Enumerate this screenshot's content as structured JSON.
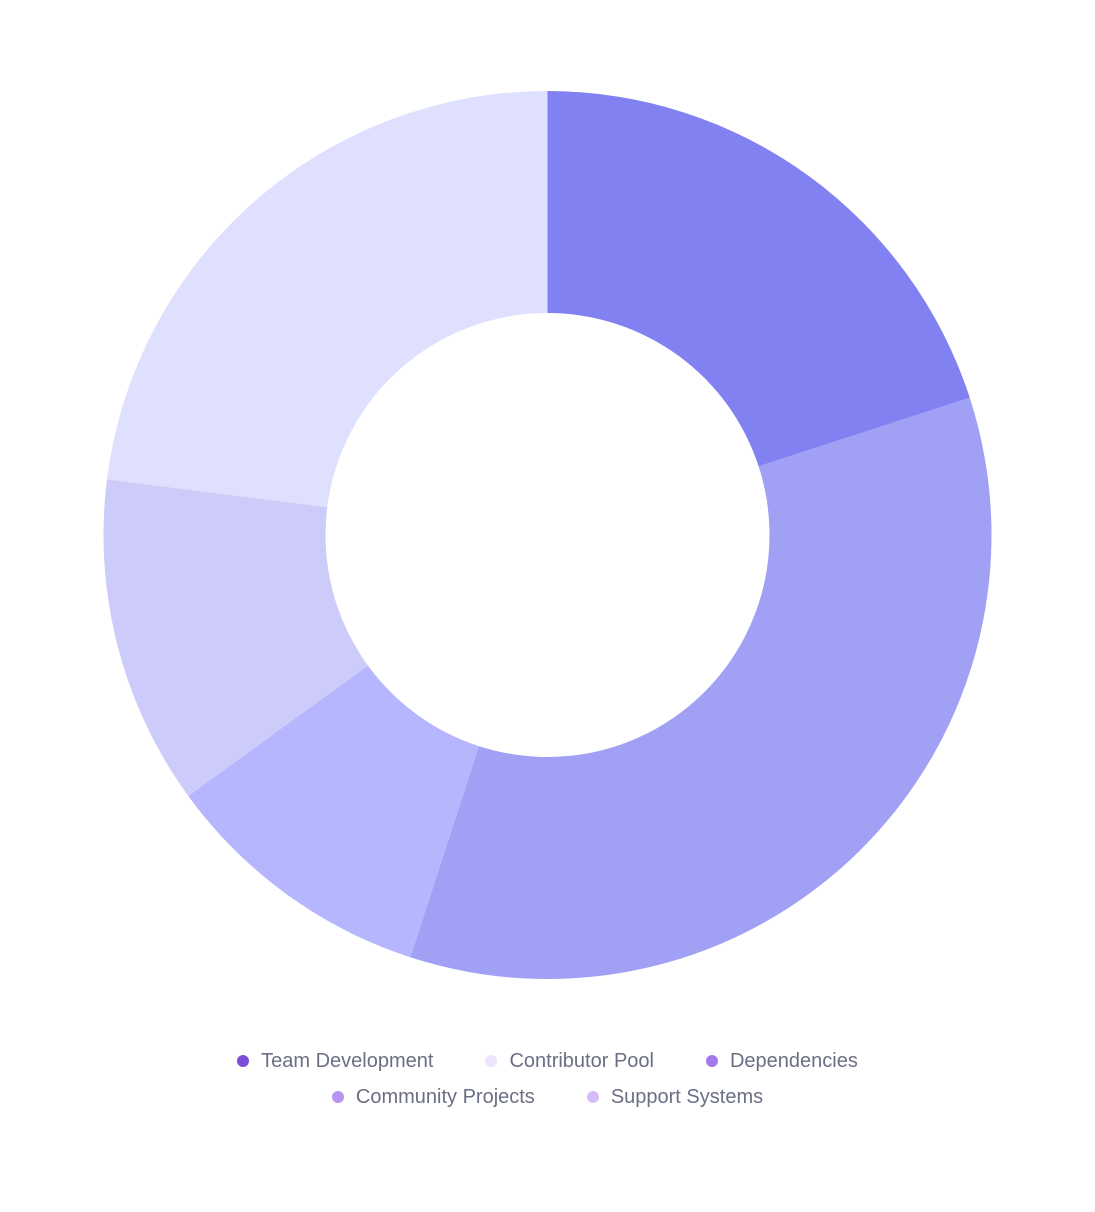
{
  "chart_data": {
    "type": "pie",
    "donut": true,
    "slices": [
      {
        "label": "Team Development",
        "value": 20,
        "color": "#8181f2",
        "legend_color": "#7b4fd6"
      },
      {
        "label": "Contributor Pool",
        "value": 35,
        "color": "#a0a0f4",
        "legend_color": "#ede4fd"
      },
      {
        "label": "Dependencies",
        "value": 10,
        "color": "#b6b6fe",
        "legend_color": "#a47bea"
      },
      {
        "label": "Community Projects",
        "value": 12,
        "color": "#cccbfa",
        "legend_color": "#b894f0"
      },
      {
        "label": "Support Systems",
        "value": 23,
        "color": "#dfdffe",
        "legend_color": "#d6bdfa"
      }
    ],
    "legend_position": "bottom"
  }
}
